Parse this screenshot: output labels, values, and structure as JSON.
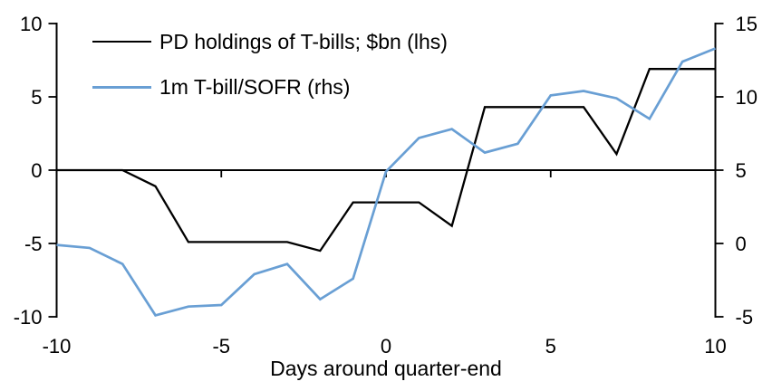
{
  "chart_data": {
    "type": "line",
    "title": "",
    "xlabel": "Days around quarter-end",
    "grid": false,
    "legend_position": "top-left",
    "x": [
      -10,
      -9,
      -8,
      -7,
      -6,
      -5,
      -4,
      -3,
      -2,
      -1,
      0,
      1,
      2,
      3,
      4,
      5,
      6,
      7,
      8,
      9,
      10
    ],
    "series": [
      {
        "name": "PD holdings of T-bills; $bn (lhs)",
        "axis": "left",
        "color": "#000000",
        "values": [
          0,
          0,
          0,
          -1.1,
          -4.9,
          -4.9,
          -4.9,
          -4.9,
          -5.5,
          -2.2,
          -2.2,
          -2.2,
          -3.8,
          4.3,
          4.3,
          4.3,
          4.3,
          1.1,
          6.9,
          6.9,
          6.9
        ]
      },
      {
        "name": "1m T-bill/SOFR (rhs)",
        "axis": "right",
        "color": "#699FD4",
        "values": [
          -0.1,
          -0.3,
          -1.4,
          -4.9,
          -4.3,
          -4.2,
          -2.1,
          -1.4,
          -3.8,
          -2.4,
          4.9,
          7.2,
          7.8,
          6.2,
          6.8,
          10.1,
          10.4,
          9.9,
          8.5,
          12.4,
          13.3
        ]
      }
    ],
    "left_axis": {
      "ticks": [
        10,
        5,
        0,
        -5,
        -10
      ],
      "range": [
        -10,
        10
      ]
    },
    "right_axis": {
      "ticks": [
        15,
        10,
        5,
        0,
        -5
      ],
      "range": [
        -5,
        15
      ]
    },
    "x_axis": {
      "ticks": [
        -10,
        -5,
        0,
        5,
        10
      ],
      "range": [
        -10,
        10
      ]
    }
  }
}
